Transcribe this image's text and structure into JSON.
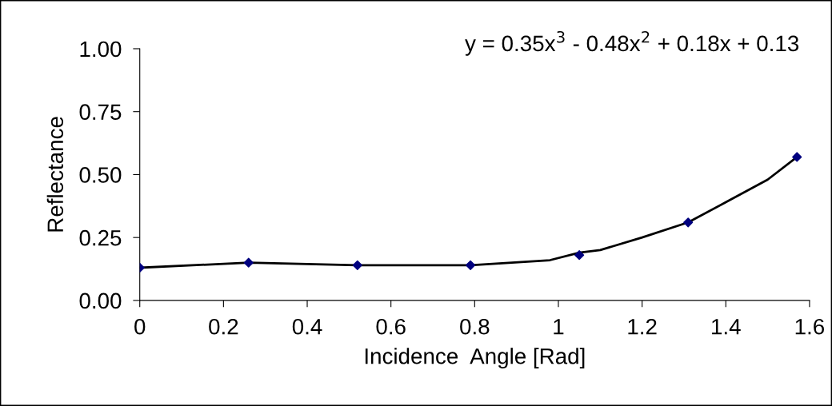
{
  "chart_data": {
    "type": "scatter",
    "xlabel": "Incidence  Angle [Rad]",
    "ylabel": "Reflectance",
    "annotations": [
      "y = 0.35x$^{3}$ - 0.48x$^{2}$ + 0.18x + 0.13"
    ],
    "xlim": [
      0,
      1.6
    ],
    "ylim": [
      0,
      1
    ],
    "xticks": [
      0,
      0.2,
      0.4,
      0.6,
      0.8,
      1,
      1.2,
      1.4,
      1.6
    ],
    "yticks": [
      {
        "value": 0,
        "label": "0.00"
      },
      {
        "value": 0.25,
        "label": "0.25"
      },
      {
        "value": 0.5,
        "label": "0.50"
      },
      {
        "value": 0.75,
        "label": "0.75"
      },
      {
        "value": 1,
        "label": "1.00"
      }
    ],
    "grid": false,
    "legend": false,
    "series": [
      {
        "type": "line",
        "color": "#000000",
        "marker": "none",
        "line_style": "solid",
        "x": [
          0,
          0.26,
          0.52,
          0.79,
          0.98,
          1.05,
          1.1,
          1.2,
          1.31,
          1.4,
          1.5,
          1.57
        ],
        "values": [
          0.13,
          0.15,
          0.14,
          0.14,
          0.16,
          0.19,
          0.2,
          0.25,
          0.31,
          0.39,
          0.48,
          0.57
        ]
      },
      {
        "color": "#00007f",
        "marker": "diamond",
        "x": [
          0,
          0.26,
          0.52,
          0.79,
          1.05,
          1.31,
          1.57
        ],
        "values": [
          0.13,
          0.15,
          0.14,
          0.14,
          0.18,
          0.31,
          0.57
        ]
      }
    ]
  }
}
